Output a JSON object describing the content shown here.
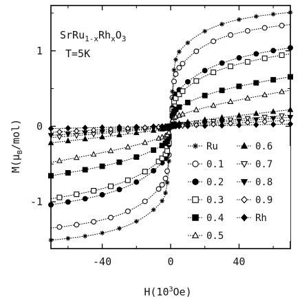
{
  "chart_data": {
    "type": "line",
    "annotations": {
      "compound_main": "SrRu",
      "compound_sub1": "1-x",
      "compound_mid": "Rh",
      "compound_sub2": "x",
      "compound_end": "O",
      "compound_sub3": "3",
      "temperature": "T=5K"
    },
    "xlabel": "H(10³Oe)",
    "ylabel": "M(μʙ/mol)",
    "ylabel_parts": {
      "main": "M(μ",
      "sub": "B",
      "end": "/mol)"
    },
    "xlabel_parts": {
      "main": "H(10",
      "sup": "3",
      "end": "Oe)"
    },
    "xlim": [
      -70,
      70
    ],
    "ylim": [
      -1.62,
      1.6
    ],
    "xticks": [
      -40,
      0,
      40
    ],
    "yticks": [
      -1,
      0,
      1
    ],
    "grid": false,
    "legend_placement": "lower-right",
    "series": [
      {
        "name": "Ru",
        "marker": "asterisk",
        "Ms": 1.52,
        "coercive": 1.2,
        "slope": 0.0015,
        "jump": 0.85
      },
      {
        "name": "0.1",
        "marker": "circle-open",
        "Ms": 1.36,
        "coercive": 1.0,
        "slope": 0.0018,
        "jump": 0.62
      },
      {
        "name": "0.2",
        "marker": "circle-filled",
        "Ms": 1.05,
        "coercive": 0.8,
        "slope": 0.003,
        "jump": 0.35
      },
      {
        "name": "0.3",
        "marker": "square-open",
        "Ms": 0.97,
        "coercive": 0.7,
        "slope": 0.0032,
        "jump": 0.3
      },
      {
        "name": "0.4",
        "marker": "square-filled",
        "Ms": 0.66,
        "coercive": 0.6,
        "slope": 0.0035,
        "jump": 0.18
      },
      {
        "name": "0.5",
        "marker": "triangle-open",
        "Ms": 0.48,
        "coercive": 0.5,
        "slope": 0.004,
        "jump": 0.1
      },
      {
        "name": "0.6",
        "marker": "triangle-filled",
        "Ms": 0.22,
        "coercive": 0.3,
        "slope": 0.0025,
        "jump": 0.02
      },
      {
        "name": "0.7",
        "marker": "tri-down-open",
        "Ms": 0.15,
        "coercive": 0.2,
        "slope": 0.0018,
        "jump": 0.01
      },
      {
        "name": "0.8",
        "marker": "tri-down-filled",
        "Ms": 0.12,
        "coercive": 0.2,
        "slope": 0.0016,
        "jump": 0.01
      },
      {
        "name": "0.9",
        "marker": "diamond-open",
        "Ms": 0.08,
        "coercive": 0.1,
        "slope": 0.0012,
        "jump": 0.0
      },
      {
        "name": "Rh",
        "marker": "diamond-filled",
        "Ms": 0.03,
        "coercive": 0.0,
        "slope": 0.0005,
        "jump": 0.0
      }
    ],
    "x_sample": [
      -70,
      -65,
      -60,
      -55,
      -50,
      -45,
      -40,
      -35,
      -30,
      -25,
      -20,
      -15,
      -10,
      -7,
      -5,
      -3,
      -2,
      -1,
      0,
      1,
      2,
      3,
      5,
      7,
      10,
      15,
      20,
      25,
      30,
      35,
      40,
      45,
      50,
      55,
      60,
      65,
      70
    ]
  }
}
